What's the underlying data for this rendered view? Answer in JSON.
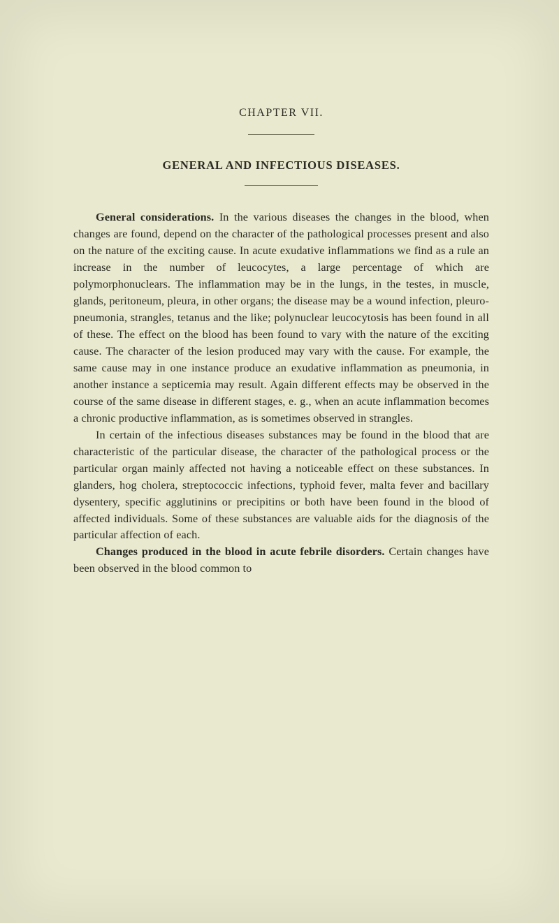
{
  "chapter_label": "CHAPTER VII.",
  "section_title": "GENERAL  AND  INFECTIOUS  DISEASES.",
  "paragraphs": [
    {
      "lead": "General considerations.",
      "body": "In the various diseases the changes in the blood, when changes are found, depend on the character of the pathological processes present and also on the nature of the exciting cause. In acute exudative inflammations we find as a rule an increase in the number of leucocytes, a large percentage of which are polymorphonuclears. The inflammation may be in the lungs, in the testes, in muscle, glands, peritoneum, pleura, in other organs; the disease may be a wound infection, pleuro-pneumonia, strangles, tetanus and the like; polynuclear leucocytosis has been found in all of these. The effect on the blood has been found to vary with the nature of the exciting cause. The character of the lesion produced may vary with the cause. For example, the same cause may in one instance produce an exudative inflammation as pneumonia, in another instance a septicemia may result. Again different effects may be observed in the course of the same disease in different stages, e. g., when an acute inflammation becomes a chronic productive inflammation, as is sometimes observed in strangles."
    },
    {
      "lead": "",
      "body": "In certain of the infectious diseases substances may be found in the blood that are characteristic of the particular disease, the character of the pathological process or the particular organ mainly affected not having a noticeable effect on these substances. In glanders, hog cholera, streptococcic infections, typhoid fever, malta fever and bacillary dysentery, specific agglutinins or precipitins or both have been found in the blood of affected individuals. Some of these substances are valuable aids for the diagnosis of the particular affection of each."
    },
    {
      "lead": "Changes produced in the blood in acute febrile disorders.",
      "body": "Certain changes have been observed in the blood common to"
    }
  ]
}
